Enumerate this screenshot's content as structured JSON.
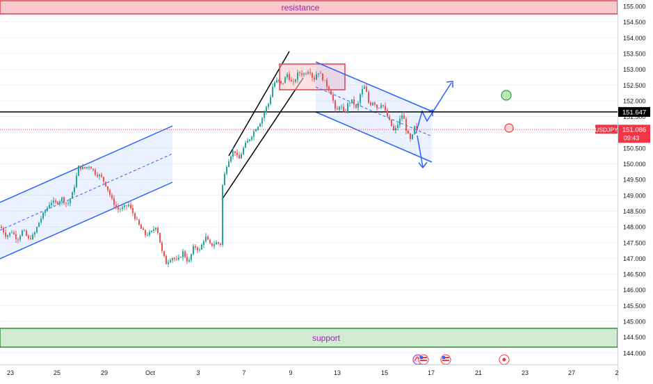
{
  "symbol": "USDJPY",
  "countdown": "09:43",
  "colors": {
    "up": "#26a69a",
    "down": "#ef5350",
    "channel_line": "#2962ff",
    "channel_fill": "#2962ff",
    "resistance_fill": "#f8c8cc",
    "resistance_border": "#e0424e",
    "support_fill": "#d3ebd3",
    "support_border": "#2e8b3a",
    "zone_label": "#9c27b0",
    "last_price": "#f23645",
    "level_line": "#000000",
    "grid": "#f0f3fa",
    "axis_text": "#131722"
  },
  "chart_data": {
    "type": "candlestick",
    "y_axis": {
      "min": 143.8,
      "max": 155.2,
      "ticks": [
        "155.000",
        "154.500",
        "154.000",
        "153.500",
        "153.000",
        "152.500",
        "152.000",
        "151.500",
        "151.000",
        "150.500",
        "150.000",
        "149.500",
        "149.000",
        "148.500",
        "148.000",
        "147.500",
        "147.000",
        "146.500",
        "146.000",
        "145.500",
        "145.000",
        "144.500",
        "144.000"
      ]
    },
    "x_axis": {
      "ticks": [
        {
          "label": "23",
          "date": "2024-09-23"
        },
        {
          "label": "25",
          "date": "2024-09-25"
        },
        {
          "label": "29",
          "date": "2024-09-29"
        },
        {
          "label": "Oct",
          "date": "2024-10-01"
        },
        {
          "label": "3",
          "date": "2024-10-03"
        },
        {
          "label": "7",
          "date": "2024-10-07"
        },
        {
          "label": "9",
          "date": "2024-10-09"
        },
        {
          "label": "13",
          "date": "2024-10-13"
        },
        {
          "label": "15",
          "date": "2024-10-15"
        },
        {
          "label": "17",
          "date": "2024-10-17"
        },
        {
          "label": "21",
          "date": "2024-10-21"
        },
        {
          "label": "23",
          "date": "2024-10-23"
        },
        {
          "label": "27",
          "date": "2024-10-27"
        },
        {
          "label": "2",
          "date": "2024-11-02"
        }
      ]
    },
    "zones": [
      {
        "name": "resistance",
        "label": "resistance",
        "from": 154.8,
        "to": 155.2,
        "kind": "resistance"
      },
      {
        "name": "support",
        "label": "support",
        "from": 144.3,
        "to": 144.9,
        "kind": "support"
      }
    ],
    "horizontal_levels": [
      {
        "name": "key-level",
        "price": 151.647,
        "label": "151.647",
        "style": "solid"
      },
      {
        "name": "last-price",
        "price": 151.086,
        "label": "151.086",
        "style": "dotted"
      }
    ],
    "price_path": [
      [
        0,
        148.0
      ],
      [
        8,
        147.7
      ],
      [
        16,
        147.85
      ],
      [
        24,
        147.6
      ],
      [
        32,
        147.9
      ],
      [
        40,
        147.6
      ],
      [
        48,
        147.75
      ],
      [
        56,
        148.2
      ],
      [
        64,
        148.5
      ],
      [
        72,
        148.8
      ],
      [
        80,
        148.75
      ],
      [
        88,
        148.9
      ],
      [
        96,
        148.7
      ],
      [
        104,
        149.1
      ],
      [
        112,
        149.9
      ],
      [
        120,
        149.85
      ],
      [
        128,
        149.95
      ],
      [
        136,
        149.7
      ],
      [
        144,
        149.6
      ],
      [
        152,
        149.3
      ],
      [
        160,
        148.85
      ],
      [
        168,
        148.55
      ],
      [
        176,
        148.6
      ],
      [
        184,
        148.7
      ],
      [
        192,
        148.35
      ],
      [
        200,
        148.0
      ],
      [
        208,
        147.75
      ],
      [
        216,
        147.8
      ],
      [
        224,
        148.05
      ],
      [
        232,
        147.2
      ],
      [
        238,
        146.85
      ],
      [
        246,
        147.05
      ],
      [
        254,
        146.9
      ],
      [
        262,
        147.2
      ],
      [
        270,
        146.85
      ],
      [
        278,
        147.4
      ],
      [
        286,
        147.25
      ],
      [
        294,
        147.7
      ],
      [
        302,
        147.4
      ],
      [
        310,
        147.5
      ],
      [
        316,
        147.45
      ],
      [
        318,
        149.2
      ],
      [
        324,
        149.9
      ],
      [
        330,
        150.25
      ],
      [
        336,
        150.45
      ],
      [
        342,
        150.1
      ],
      [
        350,
        150.55
      ],
      [
        358,
        150.8
      ],
      [
        366,
        151.1
      ],
      [
        374,
        151.35
      ],
      [
        380,
        151.7
      ],
      [
        386,
        151.95
      ],
      [
        392,
        152.55
      ],
      [
        398,
        152.65
      ],
      [
        404,
        152.5
      ],
      [
        412,
        152.85
      ],
      [
        420,
        152.5
      ],
      [
        428,
        152.9
      ],
      [
        436,
        152.85
      ],
      [
        444,
        153.0
      ],
      [
        450,
        152.65
      ],
      [
        456,
        152.95
      ],
      [
        462,
        152.75
      ],
      [
        470,
        152.45
      ],
      [
        476,
        152.2
      ],
      [
        482,
        151.6
      ],
      [
        488,
        151.9
      ],
      [
        494,
        151.55
      ],
      [
        500,
        151.95
      ],
      [
        506,
        152.0
      ],
      [
        512,
        151.7
      ],
      [
        518,
        152.3
      ],
      [
        524,
        152.45
      ],
      [
        530,
        151.85
      ],
      [
        536,
        152.0
      ],
      [
        542,
        151.75
      ],
      [
        548,
        151.95
      ],
      [
        554,
        151.6
      ],
      [
        560,
        151.3
      ],
      [
        566,
        151.0
      ],
      [
        572,
        151.3
      ],
      [
        578,
        151.6
      ],
      [
        584,
        151.0
      ],
      [
        590,
        150.7
      ],
      [
        596,
        151.25
      ],
      [
        598,
        151.086
      ]
    ],
    "annotations": [
      {
        "name": "green-circle",
        "price": 152.15,
        "date_offset": 0,
        "color": "#2ea043"
      },
      {
        "name": "red-circle",
        "price": 151.15,
        "date_offset": 0,
        "color": "#f23645"
      }
    ],
    "event_markers": [
      "eye-icon",
      "us-flag-icon",
      "us-flag-icon",
      "target-icon"
    ]
  }
}
